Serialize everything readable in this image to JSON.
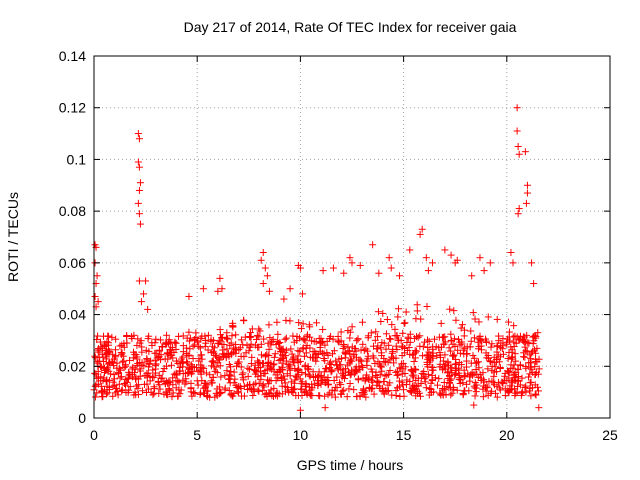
{
  "chart_data": {
    "type": "scatter",
    "title": "Day 217 of 2014, Rate Of TEC Index for receiver gaia",
    "xlabel": "GPS time / hours",
    "ylabel": "ROTI / TECUs",
    "xlim": [
      0,
      25
    ],
    "ylim": [
      0,
      0.14
    ],
    "xticks": [
      0,
      5,
      10,
      15,
      20,
      25
    ],
    "xtick_labels": [
      "0",
      "5",
      "10",
      "15",
      "20",
      "25"
    ],
    "yticks": [
      0,
      0.02,
      0.04,
      0.06,
      0.08,
      0.1,
      0.12,
      0.14
    ],
    "ytick_labels": [
      "0",
      "0.02",
      "0.04",
      "0.06",
      "0.08",
      "0.1",
      "0.12",
      "0.14"
    ],
    "grid": true,
    "marker": "plus",
    "color": "#ff0000",
    "x_range_of_data": [
      0,
      21.6
    ],
    "band": {
      "typical_low": 0.008,
      "typical_high": 0.032,
      "profile": [
        {
          "x": 0.0,
          "upper": 0.03
        },
        {
          "x": 2.0,
          "upper": 0.028
        },
        {
          "x": 4.0,
          "upper": 0.034
        },
        {
          "x": 6.0,
          "upper": 0.035
        },
        {
          "x": 8.0,
          "upper": 0.04
        },
        {
          "x": 10.0,
          "upper": 0.038
        },
        {
          "x": 12.0,
          "upper": 0.04
        },
        {
          "x": 14.0,
          "upper": 0.042
        },
        {
          "x": 16.0,
          "upper": 0.045
        },
        {
          "x": 18.0,
          "upper": 0.042
        },
        {
          "x": 20.0,
          "upper": 0.038
        },
        {
          "x": 21.6,
          "upper": 0.035
        }
      ]
    },
    "notable_points": [
      {
        "x": 0.05,
        "y": 0.067
      },
      {
        "x": 0.1,
        "y": 0.066
      },
      {
        "x": 0.05,
        "y": 0.06
      },
      {
        "x": 0.15,
        "y": 0.055
      },
      {
        "x": 0.1,
        "y": 0.052
      },
      {
        "x": 0.05,
        "y": 0.047
      },
      {
        "x": 0.2,
        "y": 0.045
      },
      {
        "x": 0.1,
        "y": 0.043
      },
      {
        "x": 2.15,
        "y": 0.11
      },
      {
        "x": 2.2,
        "y": 0.108
      },
      {
        "x": 2.15,
        "y": 0.099
      },
      {
        "x": 2.2,
        "y": 0.097
      },
      {
        "x": 2.25,
        "y": 0.091
      },
      {
        "x": 2.2,
        "y": 0.088
      },
      {
        "x": 2.15,
        "y": 0.083
      },
      {
        "x": 2.2,
        "y": 0.079
      },
      {
        "x": 2.25,
        "y": 0.075
      },
      {
        "x": 2.2,
        "y": 0.053
      },
      {
        "x": 2.5,
        "y": 0.053
      },
      {
        "x": 2.4,
        "y": 0.048
      },
      {
        "x": 2.3,
        "y": 0.045
      },
      {
        "x": 2.6,
        "y": 0.042
      },
      {
        "x": 4.6,
        "y": 0.047
      },
      {
        "x": 5.3,
        "y": 0.05
      },
      {
        "x": 6.1,
        "y": 0.054
      },
      {
        "x": 6.2,
        "y": 0.05
      },
      {
        "x": 6.0,
        "y": 0.049
      },
      {
        "x": 8.2,
        "y": 0.064
      },
      {
        "x": 8.1,
        "y": 0.061
      },
      {
        "x": 8.3,
        "y": 0.058
      },
      {
        "x": 8.4,
        "y": 0.055
      },
      {
        "x": 8.2,
        "y": 0.052
      },
      {
        "x": 8.5,
        "y": 0.049
      },
      {
        "x": 9.5,
        "y": 0.05
      },
      {
        "x": 9.9,
        "y": 0.059
      },
      {
        "x": 10.0,
        "y": 0.058
      },
      {
        "x": 10.1,
        "y": 0.048
      },
      {
        "x": 9.2,
        "y": 0.046
      },
      {
        "x": 11.1,
        "y": 0.057
      },
      {
        "x": 11.6,
        "y": 0.058
      },
      {
        "x": 12.1,
        "y": 0.056
      },
      {
        "x": 12.4,
        "y": 0.062
      },
      {
        "x": 12.5,
        "y": 0.06
      },
      {
        "x": 12.9,
        "y": 0.059
      },
      {
        "x": 13.5,
        "y": 0.067
      },
      {
        "x": 13.8,
        "y": 0.056
      },
      {
        "x": 14.3,
        "y": 0.062
      },
      {
        "x": 14.4,
        "y": 0.058
      },
      {
        "x": 14.8,
        "y": 0.055
      },
      {
        "x": 15.3,
        "y": 0.065
      },
      {
        "x": 15.9,
        "y": 0.073
      },
      {
        "x": 15.8,
        "y": 0.071
      },
      {
        "x": 16.1,
        "y": 0.062
      },
      {
        "x": 16.4,
        "y": 0.06
      },
      {
        "x": 16.2,
        "y": 0.057
      },
      {
        "x": 17.0,
        "y": 0.065
      },
      {
        "x": 17.3,
        "y": 0.063
      },
      {
        "x": 17.5,
        "y": 0.06
      },
      {
        "x": 17.6,
        "y": 0.061
      },
      {
        "x": 18.3,
        "y": 0.055
      },
      {
        "x": 18.7,
        "y": 0.062
      },
      {
        "x": 19.2,
        "y": 0.06
      },
      {
        "x": 18.9,
        "y": 0.057
      },
      {
        "x": 20.2,
        "y": 0.064
      },
      {
        "x": 20.3,
        "y": 0.06
      },
      {
        "x": 20.5,
        "y": 0.12
      },
      {
        "x": 20.5,
        "y": 0.111
      },
      {
        "x": 20.55,
        "y": 0.105
      },
      {
        "x": 20.6,
        "y": 0.102
      },
      {
        "x": 20.6,
        "y": 0.081
      },
      {
        "x": 20.55,
        "y": 0.079
      },
      {
        "x": 20.9,
        "y": 0.103
      },
      {
        "x": 21.0,
        "y": 0.09
      },
      {
        "x": 21.0,
        "y": 0.087
      },
      {
        "x": 20.95,
        "y": 0.083
      },
      {
        "x": 21.2,
        "y": 0.06
      },
      {
        "x": 21.3,
        "y": 0.052
      },
      {
        "x": 21.5,
        "y": 0.033
      },
      {
        "x": 21.55,
        "y": 0.004
      },
      {
        "x": 10.0,
        "y": 0.003
      },
      {
        "x": 11.2,
        "y": 0.004
      },
      {
        "x": 18.4,
        "y": 0.005
      }
    ]
  }
}
